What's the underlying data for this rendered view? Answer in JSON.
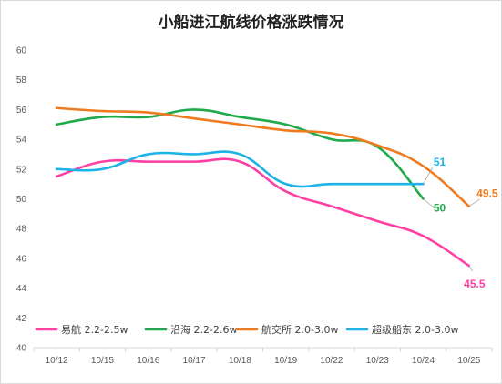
{
  "chart_data": {
    "type": "line",
    "title": "小船进江航线价格涨跌情况",
    "xlabel": "",
    "ylabel": "",
    "categories": [
      "10/12",
      "10/15",
      "10/16",
      "10/17",
      "10/18",
      "10/19",
      "10/22",
      "10/23",
      "10/24",
      "10/25"
    ],
    "ylim": [
      40,
      60
    ],
    "yticks": [
      40,
      42,
      44,
      46,
      48,
      50,
      52,
      54,
      56,
      58,
      60
    ],
    "grid": false,
    "legend_position": "bottom",
    "series": [
      {
        "name": "易航 2.2-2.5w",
        "color": "#ff3fa4",
        "values": [
          51.5,
          52.5,
          52.5,
          52.5,
          52.5,
          50.5,
          49.5,
          48.5,
          47.5,
          45.5
        ],
        "end_label": "45.5"
      },
      {
        "name": "沿海 2.2-2.6w",
        "color": "#1faa4a",
        "values": [
          55.0,
          55.5,
          55.5,
          56.0,
          55.5,
          55.0,
          54.0,
          53.5,
          50.0,
          null
        ],
        "end_label": "50"
      },
      {
        "name": "航交所 2.0-3.0w",
        "color": "#f07a1e",
        "values": [
          56.1,
          55.9,
          55.8,
          55.4,
          55.0,
          54.6,
          54.4,
          53.6,
          52.2,
          49.5
        ],
        "end_label": "49.5"
      },
      {
        "name": "超级船东 2.0-3.0w",
        "color": "#1bb3e8",
        "values": [
          52.0,
          52.0,
          53.0,
          53.0,
          53.0,
          51.0,
          51.0,
          51.0,
          51.0,
          null
        ],
        "end_label": "51"
      }
    ]
  }
}
